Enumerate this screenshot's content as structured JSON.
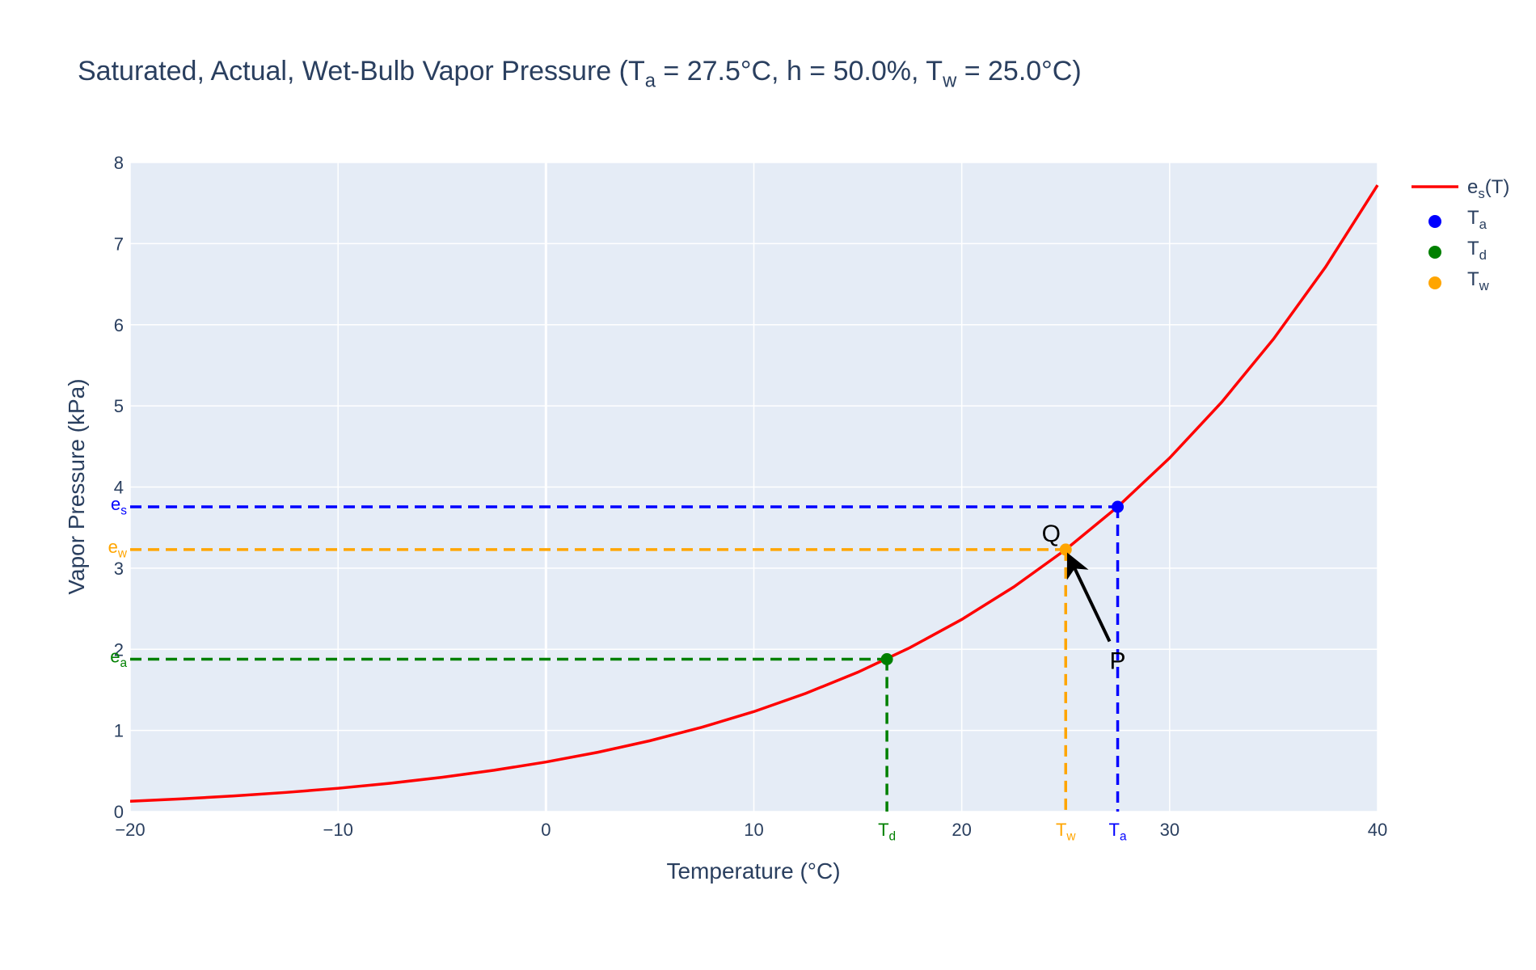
{
  "chart_data": {
    "type": "line",
    "title": [
      "Saturated, Actual, Wet-Bulb Vapor Pressure (T",
      "a",
      " = 27.5°C, h = 50.0%, T",
      "w",
      " = 25.0°C)"
    ],
    "xlabel": "Temperature (°C)",
    "ylabel": "Vapor Pressure (kPa)",
    "xlim": [
      -20,
      40
    ],
    "ylim": [
      0,
      8
    ],
    "xticks": [
      {
        "value": -20,
        "label": "−20"
      },
      {
        "value": -10,
        "label": "−10"
      },
      0,
      10,
      20,
      30,
      40
    ],
    "yticks": [
      0,
      1,
      2,
      3,
      4,
      5,
      6,
      7,
      8
    ],
    "grid": true,
    "legend": "right",
    "series": [
      {
        "name": [
          "e",
          "s",
          "(T)"
        ],
        "color": "#ff0000",
        "x": [
          -20,
          -17.5,
          -15,
          -12.5,
          -10,
          -7.5,
          -5,
          -2.5,
          0,
          2.5,
          5,
          7.5,
          10,
          12.5,
          15,
          17.5,
          20,
          22.5,
          25,
          27.5,
          30,
          32.5,
          35,
          37.5,
          40
        ],
        "values": [
          0.127,
          0.157,
          0.193,
          0.236,
          0.287,
          0.349,
          0.422,
          0.509,
          0.611,
          0.731,
          0.873,
          1.039,
          1.232,
          1.457,
          1.717,
          2.019,
          2.368,
          2.768,
          3.229,
          3.756,
          4.358,
          5.045,
          5.826,
          6.712,
          7.72
        ]
      }
    ],
    "points": [
      {
        "name": [
          "T",
          "a"
        ],
        "color": "#0000ff",
        "x": 27.5,
        "value": 3.756,
        "y_label": [
          "e",
          "s"
        ]
      },
      {
        "name": [
          "T",
          "d"
        ],
        "color": "#008000",
        "x": 16.4,
        "value": 1.878,
        "y_label": [
          "e",
          "a"
        ]
      },
      {
        "name": [
          "T",
          "w"
        ],
        "color": "#ffa500",
        "x": 25,
        "value": 3.229,
        "y_label": [
          "e",
          "w"
        ]
      }
    ],
    "annotations": [
      "Q",
      "P"
    ]
  }
}
